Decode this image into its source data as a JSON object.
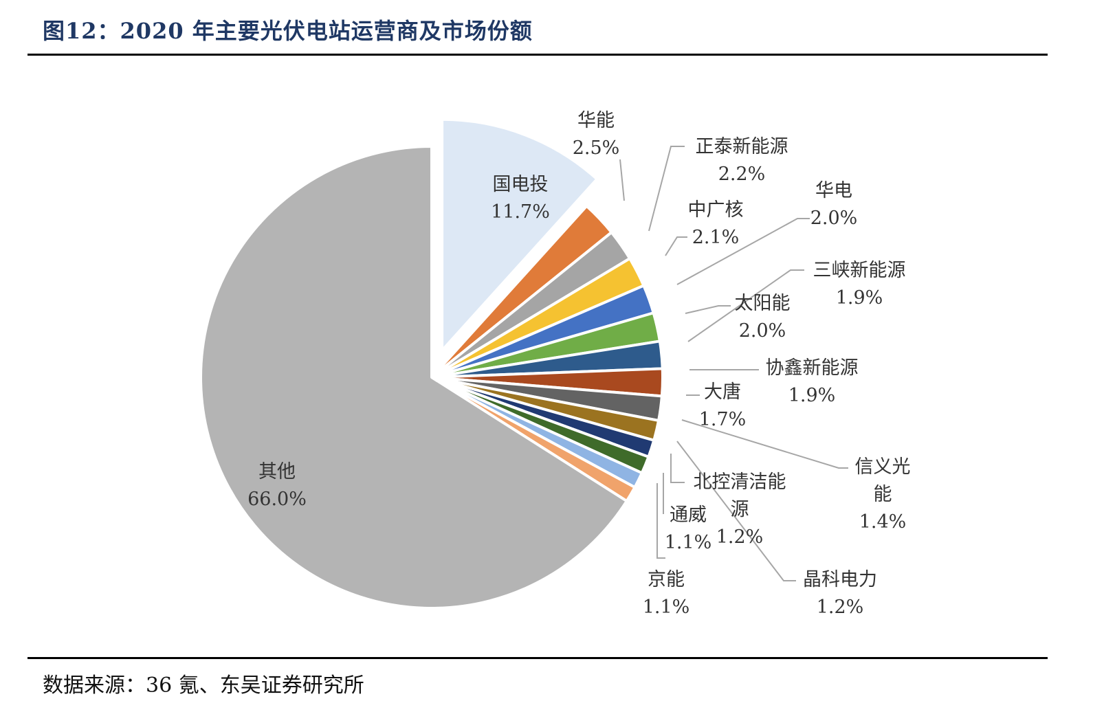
{
  "header": {
    "figure_title": "图12：2020 年主要光伏电站运营商及市场份额"
  },
  "footer": {
    "source": "数据来源：36 氪、东吴证券研究所"
  },
  "chart_data": {
    "type": "pie",
    "title": "图12：2020 年主要光伏电站运营商及市场份额",
    "unit": "%",
    "slices": [
      {
        "name": "国电投",
        "label_lines": [
          "国电投"
        ],
        "value_label": "11.7%",
        "value": 11.7,
        "color": "#dde8f5",
        "exploded": true
      },
      {
        "name": "华能",
        "label_lines": [
          "华能"
        ],
        "value_label": "2.5%",
        "value": 2.5,
        "color": "#e07b39"
      },
      {
        "name": "正泰新能源",
        "label_lines": [
          "正泰新能源"
        ],
        "value_label": "2.2%",
        "value": 2.2,
        "color": "#a5a5a5"
      },
      {
        "name": "中广核",
        "label_lines": [
          "中广核"
        ],
        "value_label": "2.1%",
        "value": 2.1,
        "color": "#f5c231"
      },
      {
        "name": "华电",
        "label_lines": [
          "华电"
        ],
        "value_label": "2.0%",
        "value": 2.0,
        "color": "#4472c4"
      },
      {
        "name": "太阳能",
        "label_lines": [
          "太阳能"
        ],
        "value_label": "2.0%",
        "value": 2.0,
        "color": "#70ad47"
      },
      {
        "name": "三峡新能源",
        "label_lines": [
          "三峡新能源"
        ],
        "value_label": "1.9%",
        "value": 1.9,
        "color": "#2e5b8c"
      },
      {
        "name": "协鑫新能源",
        "label_lines": [
          "协鑫新能源"
        ],
        "value_label": "1.9%",
        "value": 1.9,
        "color": "#a9491f"
      },
      {
        "name": "大唐",
        "label_lines": [
          "大唐"
        ],
        "value_label": "1.7%",
        "value": 1.7,
        "color": "#636363"
      },
      {
        "name": "信义光能",
        "label_lines": [
          "信义光",
          "能"
        ],
        "value_label": "1.4%",
        "value": 1.4,
        "color": "#9b7320"
      },
      {
        "name": "晶科电力",
        "label_lines": [
          "晶科电力"
        ],
        "value_label": "1.2%",
        "value": 1.2,
        "color": "#203a72"
      },
      {
        "name": "北控清洁能源",
        "label_lines": [
          "北控清洁能",
          "源"
        ],
        "value_label": "1.2%",
        "value": 1.2,
        "color": "#3f6b2a"
      },
      {
        "name": "通威",
        "label_lines": [
          "通威"
        ],
        "value_label": "1.1%",
        "value": 1.1,
        "color": "#8fb4e3"
      },
      {
        "name": "京能",
        "label_lines": [
          "京能"
        ],
        "value_label": "1.1%",
        "value": 1.1,
        "color": "#f0a36b"
      },
      {
        "name": "其他",
        "label_lines": [
          "其他"
        ],
        "value_label": "66.0%",
        "value": 66.0,
        "color": "#b4b4b4"
      }
    ]
  }
}
